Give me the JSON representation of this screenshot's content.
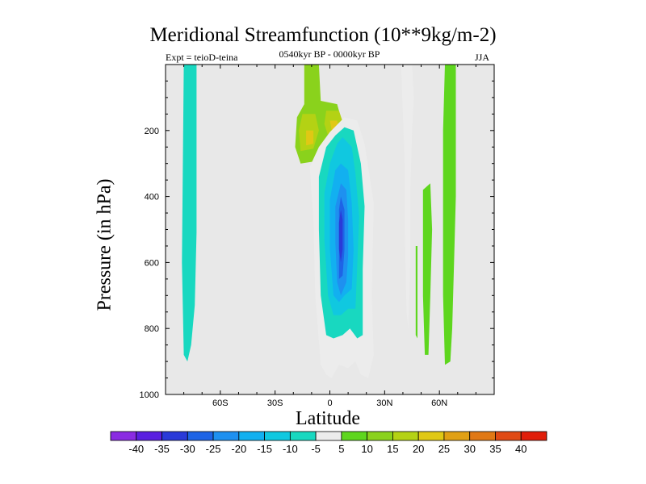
{
  "chart_data": {
    "type": "contour",
    "title": "Meridional Streamfunction (10**9kg/m-2)",
    "subtitle": "0540kyr BP - 0000kyr BP",
    "experiment_label": "Expt = teioD-teina",
    "season": "JJA",
    "xlabel": "Latitude",
    "ylabel": "Pressure (in hPa)",
    "xlim": [
      -90,
      90
    ],
    "ylim": [
      1000,
      0
    ],
    "x_ticks": [
      {
        "value": -60,
        "label": "60S"
      },
      {
        "value": -30,
        "label": "30S"
      },
      {
        "value": 0,
        "label": "0"
      },
      {
        "value": 30,
        "label": "30N"
      },
      {
        "value": 60,
        "label": "60N"
      }
    ],
    "y_ticks": [
      {
        "value": 200,
        "label": "200"
      },
      {
        "value": 400,
        "label": "400"
      },
      {
        "value": 600,
        "label": "600"
      },
      {
        "value": 800,
        "label": "800"
      },
      {
        "value": 1000,
        "label": "1000"
      }
    ],
    "missing_color": "#e8e8e8",
    "colorbar": {
      "labels": [
        "-40",
        "-35",
        "-30",
        "-25",
        "-20",
        "-15",
        "-10",
        "-5",
        "5",
        "10",
        "15",
        "20",
        "25",
        "30",
        "35",
        "40"
      ],
      "colors": [
        "#8a2be2",
        "#5a1fe0",
        "#2a3ad8",
        "#1e64e6",
        "#1e90f0",
        "#12b0f0",
        "#10c8e0",
        "#18d8c0",
        "#ececec",
        "#5ed61e",
        "#8ad21c",
        "#b4d214",
        "#e0c814",
        "#e0a014",
        "#e07814",
        "#e04a14",
        "#e01e0a"
      ]
    },
    "regions": [
      {
        "class": "-10",
        "points": [
          [
            -80,
            0
          ],
          [
            -73,
            0
          ],
          [
            -73,
            510
          ],
          [
            -74,
            730
          ],
          [
            -76,
            850
          ],
          [
            -78,
            900
          ],
          [
            -80,
            880
          ],
          [
            -81,
            600
          ]
        ]
      },
      {
        "class": "10",
        "points": [
          [
            -14,
            0
          ],
          [
            -6,
            0
          ],
          [
            -5,
            110
          ],
          [
            4,
            120
          ],
          [
            8,
            200
          ],
          [
            5,
            260
          ],
          [
            -4,
            290
          ],
          [
            -16,
            300
          ],
          [
            -19,
            250
          ],
          [
            -18,
            160
          ],
          [
            -14,
            120
          ]
        ]
      },
      {
        "class": "15",
        "points": [
          [
            -15,
            150
          ],
          [
            -8,
            150
          ],
          [
            -6,
            200
          ],
          [
            -9,
            255
          ],
          [
            -16,
            262
          ],
          [
            -17,
            200
          ]
        ]
      },
      {
        "class": "20",
        "points": [
          [
            -13,
            200
          ],
          [
            -9,
            200
          ],
          [
            -9,
            240
          ],
          [
            -13,
            245
          ]
        ]
      },
      {
        "class": "15",
        "points": [
          [
            -2,
            140
          ],
          [
            5,
            140
          ],
          [
            8,
            190
          ],
          [
            6,
            220
          ],
          [
            -1,
            215
          ],
          [
            -3,
            180
          ]
        ]
      },
      {
        "class": "20",
        "points": [
          [
            0,
            170
          ],
          [
            4,
            170
          ],
          [
            5,
            195
          ],
          [
            1,
            200
          ]
        ]
      },
      {
        "class": "-5",
        "points": [
          [
            8,
            160
          ],
          [
            15,
            170
          ],
          [
            19,
            240
          ],
          [
            24,
            420
          ],
          [
            23,
            700
          ],
          [
            24,
            880
          ],
          [
            21,
            950
          ],
          [
            17,
            940
          ],
          [
            14,
            900
          ],
          [
            10,
            920
          ],
          [
            5,
            910
          ],
          [
            1,
            950
          ],
          [
            -2,
            940
          ],
          [
            -5,
            910
          ],
          [
            -8,
            700
          ],
          [
            -9,
            470
          ],
          [
            -11,
            310
          ],
          [
            -6,
            250
          ],
          [
            0,
            205
          ]
        ]
      },
      {
        "class": "-10",
        "points": [
          [
            8,
            190
          ],
          [
            13,
            200
          ],
          [
            17,
            300
          ],
          [
            19,
            430
          ],
          [
            18,
            620
          ],
          [
            18,
            820
          ],
          [
            15,
            830
          ],
          [
            11,
            800
          ],
          [
            7,
            820
          ],
          [
            2,
            830
          ],
          [
            -2,
            820
          ],
          [
            -5,
            700
          ],
          [
            -6,
            500
          ],
          [
            -6,
            340
          ],
          [
            -2,
            250
          ],
          [
            3,
            215
          ]
        ]
      },
      {
        "class": "-15",
        "points": [
          [
            7,
            220
          ],
          [
            12,
            250
          ],
          [
            14,
            330
          ],
          [
            16,
            460
          ],
          [
            15,
            610
          ],
          [
            14,
            740
          ],
          [
            10,
            740
          ],
          [
            6,
            760
          ],
          [
            2,
            760
          ],
          [
            -1,
            700
          ],
          [
            -3,
            530
          ],
          [
            -3,
            390
          ],
          [
            0,
            300
          ],
          [
            4,
            240
          ]
        ]
      },
      {
        "class": "-20",
        "points": [
          [
            6,
            300
          ],
          [
            10,
            320
          ],
          [
            12,
            420
          ],
          [
            13,
            560
          ],
          [
            12,
            680
          ],
          [
            8,
            700
          ],
          [
            5,
            720
          ],
          [
            2,
            700
          ],
          [
            0,
            560
          ],
          [
            0,
            410
          ],
          [
            3,
            320
          ]
        ]
      },
      {
        "class": "-25",
        "points": [
          [
            6,
            360
          ],
          [
            9,
            380
          ],
          [
            10,
            470
          ],
          [
            10,
            580
          ],
          [
            9,
            660
          ],
          [
            6,
            700
          ],
          [
            4,
            660
          ],
          [
            3,
            540
          ],
          [
            3,
            430
          ]
        ]
      },
      {
        "class": "-30",
        "points": [
          [
            6,
            400
          ],
          [
            8,
            440
          ],
          [
            8,
            560
          ],
          [
            7,
            640
          ],
          [
            5,
            650
          ],
          [
            5,
            520
          ],
          [
            5,
            440
          ]
        ]
      },
      {
        "class": "-35",
        "points": [
          [
            6,
            440
          ],
          [
            7,
            470
          ],
          [
            7,
            560
          ],
          [
            6,
            600
          ],
          [
            5,
            560
          ],
          [
            5,
            480
          ]
        ]
      },
      {
        "class": "-5",
        "points": [
          [
            39,
            0
          ],
          [
            45,
            0
          ],
          [
            46,
            100
          ],
          [
            45,
            200
          ],
          [
            44,
            400
          ],
          [
            44,
            600
          ],
          [
            43,
            800
          ],
          [
            42,
            750
          ],
          [
            41,
            500
          ],
          [
            41,
            300
          ],
          [
            40,
            150
          ]
        ]
      },
      {
        "class": "5",
        "points": [
          [
            51,
            380
          ],
          [
            55,
            360
          ],
          [
            56,
            500
          ],
          [
            55,
            700
          ],
          [
            54,
            880
          ],
          [
            52,
            880
          ],
          [
            51,
            700
          ],
          [
            51,
            500
          ]
        ]
      },
      {
        "class": "5",
        "points": [
          [
            47,
            550
          ],
          [
            48,
            550
          ],
          [
            48,
            740
          ],
          [
            48,
            830
          ],
          [
            47,
            820
          ],
          [
            47,
            700
          ]
        ]
      },
      {
        "class": "5",
        "points": [
          [
            63,
            0
          ],
          [
            69,
            0
          ],
          [
            69,
            200
          ],
          [
            69,
            400
          ],
          [
            68,
            600
          ],
          [
            67,
            800
          ],
          [
            66,
            900
          ],
          [
            63,
            910
          ],
          [
            62,
            700
          ],
          [
            62,
            400
          ],
          [
            62,
            200
          ]
        ]
      }
    ]
  }
}
